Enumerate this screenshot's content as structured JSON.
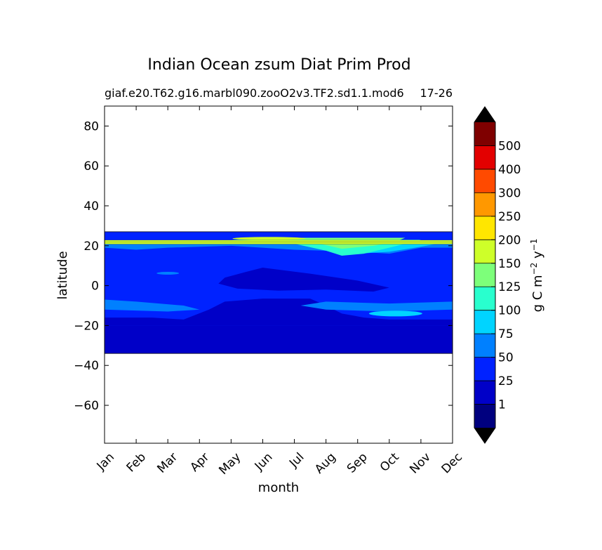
{
  "chart_data": {
    "type": "heatmap",
    "title": "Indian Ocean zsum Diat Prim Prod",
    "subtitle_left": "giaf.e20.T62.g16.marbl090.zooO2v3.TF2.sd1.1.mod6",
    "subtitle_right": "17-26",
    "xlabel": "month",
    "ylabel": "latitude",
    "x_categories": [
      "Jan",
      "Feb",
      "Mar",
      "Apr",
      "May",
      "Jun",
      "Jul",
      "Aug",
      "Sep",
      "Oct",
      "Nov",
      "Dec"
    ],
    "xlim": [
      0,
      11
    ],
    "ylim": [
      -79,
      90
    ],
    "y_ticks": [
      80,
      60,
      40,
      20,
      0,
      -20,
      -40,
      -60
    ],
    "y_tick_labels": [
      "80",
      "60",
      "40",
      "20",
      "0",
      "−20",
      "−40",
      "−60"
    ],
    "data_extent_lat": [
      -34,
      27
    ],
    "colorbar": {
      "label_parts": [
        "g C m",
        "−2",
        " y",
        "−1"
      ],
      "levels": [
        1,
        25,
        50,
        75,
        100,
        125,
        150,
        200,
        250,
        300,
        400,
        500
      ],
      "tick_labels": [
        "1",
        "25",
        "50",
        "75",
        "100",
        "125",
        "150",
        "200",
        "250",
        "300",
        "400",
        "500"
      ],
      "colors": [
        "#00007f",
        "#0000c8",
        "#0022ff",
        "#0080ff",
        "#00d4ff",
        "#29ffce",
        "#7dff7a",
        "#ceff29",
        "#ffe600",
        "#ff9800",
        "#ff4a00",
        "#e30000",
        "#7f0000"
      ],
      "extend": "both",
      "extend_color": "#000000"
    }
  }
}
